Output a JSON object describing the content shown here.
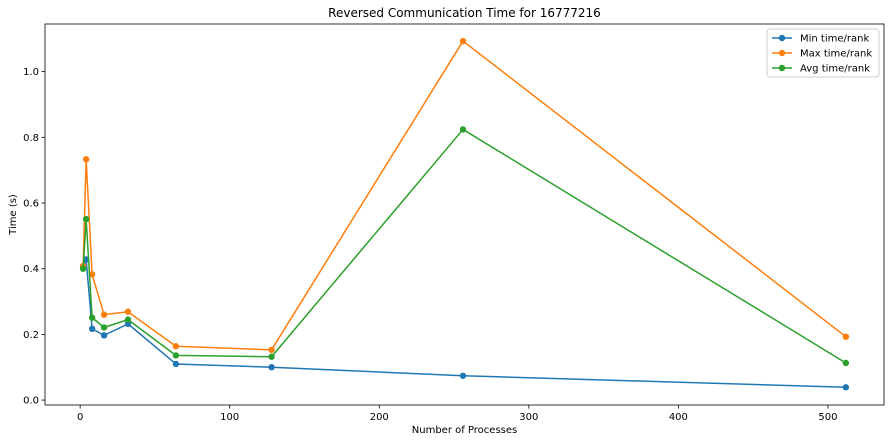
{
  "chart_data": {
    "type": "line",
    "title": "Reversed Communication Time for 16777216",
    "xlabel": "Number of Processes",
    "ylabel": "Time (s)",
    "xlim": [
      -23.5,
      537.5
    ],
    "ylim": [
      -0.015,
      1.145
    ],
    "xticks": [
      0,
      100,
      200,
      300,
      400,
      500
    ],
    "yticks": [
      0.0,
      0.2,
      0.4,
      0.6,
      0.8,
      1.0
    ],
    "ytick_labels": [
      "0.0",
      "0.2",
      "0.4",
      "0.6",
      "0.8",
      "1.0"
    ],
    "grid": false,
    "legend_position": "top-right",
    "series": [
      {
        "name": "Min time/rank",
        "color": "#1f77b4",
        "x": [
          2,
          4,
          8,
          16,
          32,
          64,
          128,
          256,
          512
        ],
        "y": [
          0.404,
          0.428,
          0.217,
          0.197,
          0.232,
          0.11,
          0.1,
          0.074,
          0.039
        ]
      },
      {
        "name": "Max time/rank",
        "color": "#ff7f0e",
        "x": [
          2,
          4,
          8,
          16,
          32,
          64,
          128,
          256,
          512
        ],
        "y": [
          0.408,
          0.733,
          0.383,
          0.26,
          0.269,
          0.164,
          0.153,
          1.093,
          0.193
        ]
      },
      {
        "name": "Avg time/rank",
        "color": "#2ca02c",
        "x": [
          2,
          4,
          8,
          16,
          32,
          64,
          128,
          256,
          512
        ],
        "y": [
          0.4,
          0.551,
          0.251,
          0.221,
          0.245,
          0.136,
          0.132,
          0.824,
          0.113
        ]
      }
    ]
  }
}
